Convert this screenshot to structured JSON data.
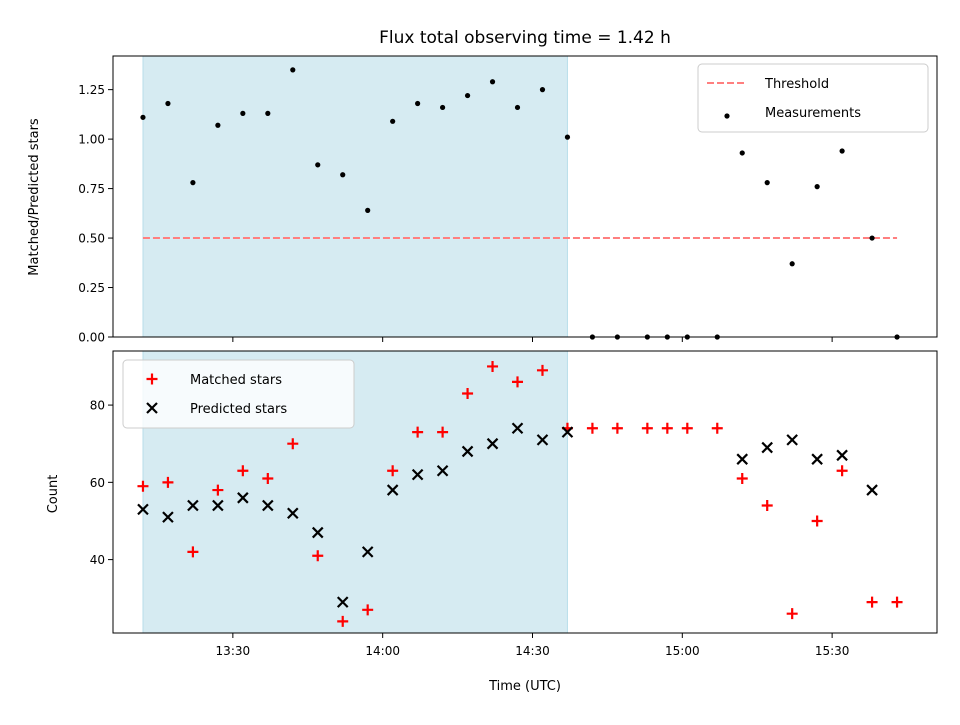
{
  "chart_data": [
    {
      "type": "scatter",
      "title": "Flux total observing time = 1.42 h",
      "xlabel": "",
      "ylabel": "Matched/Predicted stars",
      "xlim": [
        "13:06",
        "15:51"
      ],
      "ylim": [
        0.0,
        1.42
      ],
      "yticks": [
        0.0,
        0.25,
        0.5,
        0.75,
        1.0,
        1.25
      ],
      "ytick_labels": [
        "0.00",
        "0.25",
        "0.50",
        "0.75",
        "1.00",
        "1.25"
      ],
      "shaded_interval": [
        "13:12",
        "14:37"
      ],
      "shade_color": "#add8e6",
      "legend_position": "upper right",
      "series": [
        {
          "name": "Threshold",
          "style": "dashed-line",
          "color": "#ff7f7f",
          "x": [
            "13:12",
            "15:43"
          ],
          "y": [
            0.5,
            0.5
          ]
        },
        {
          "name": "Measurements",
          "style": "point",
          "color": "#000000",
          "x": [
            "13:12",
            "13:17",
            "13:22",
            "13:27",
            "13:32",
            "13:37",
            "13:42",
            "13:47",
            "13:52",
            "13:57",
            "14:02",
            "14:07",
            "14:12",
            "14:17",
            "14:22",
            "14:27",
            "14:32",
            "14:37",
            "14:42",
            "14:47",
            "14:53",
            "14:57",
            "15:01",
            "15:07",
            "15:12",
            "15:17",
            "15:22",
            "15:27",
            "15:32",
            "15:38",
            "15:43"
          ],
          "y": [
            1.11,
            1.18,
            0.78,
            1.07,
            1.13,
            1.13,
            1.35,
            0.87,
            0.82,
            0.64,
            1.09,
            1.18,
            1.16,
            1.22,
            1.29,
            1.16,
            1.25,
            1.01,
            0.0,
            0.0,
            0.0,
            0.0,
            0.0,
            0.0,
            0.93,
            0.78,
            0.37,
            0.76,
            0.94,
            0.5,
            0.0
          ]
        }
      ]
    },
    {
      "type": "scatter",
      "xlabel": "Time (UTC)",
      "ylabel": "Count",
      "xlim": [
        "13:06",
        "15:51"
      ],
      "ylim": [
        21,
        94
      ],
      "xticks": [
        "13:30",
        "14:00",
        "14:30",
        "15:00",
        "15:30"
      ],
      "yticks": [
        40,
        60,
        80
      ],
      "shaded_interval": [
        "13:12",
        "14:37"
      ],
      "shade_color": "#add8e6",
      "legend_position": "upper left",
      "series": [
        {
          "name": "Matched stars",
          "marker": "plus",
          "color": "#ff0000",
          "x": [
            "13:12",
            "13:17",
            "13:22",
            "13:27",
            "13:32",
            "13:37",
            "13:42",
            "13:47",
            "13:52",
            "13:57",
            "14:02",
            "14:07",
            "14:12",
            "14:17",
            "14:22",
            "14:27",
            "14:32",
            "14:37",
            "14:42",
            "14:47",
            "14:53",
            "14:57",
            "15:01",
            "15:07",
            "15:12",
            "15:17",
            "15:22",
            "15:27",
            "15:32",
            "15:38",
            "15:43"
          ],
          "y": [
            59,
            60,
            42,
            58,
            63,
            61,
            70,
            41,
            24,
            27,
            63,
            73,
            73,
            83,
            90,
            86,
            89,
            74,
            74,
            74,
            74,
            74,
            74,
            74,
            61,
            54,
            26,
            50,
            63,
            29,
            29
          ]
        },
        {
          "name": "Predicted stars",
          "marker": "x",
          "color": "#000000",
          "x": [
            "13:12",
            "13:17",
            "13:22",
            "13:27",
            "13:32",
            "13:37",
            "13:42",
            "13:47",
            "13:52",
            "13:57",
            "14:02",
            "14:07",
            "14:12",
            "14:17",
            "14:22",
            "14:27",
            "14:32",
            "14:37",
            "15:12",
            "15:17",
            "15:22",
            "15:27",
            "15:32",
            "15:38"
          ],
          "y": [
            53,
            51,
            54,
            54,
            56,
            54,
            52,
            47,
            29,
            42,
            58,
            62,
            63,
            68,
            70,
            74,
            71,
            73,
            66,
            69,
            71,
            66,
            67,
            58
          ]
        }
      ]
    }
  ]
}
